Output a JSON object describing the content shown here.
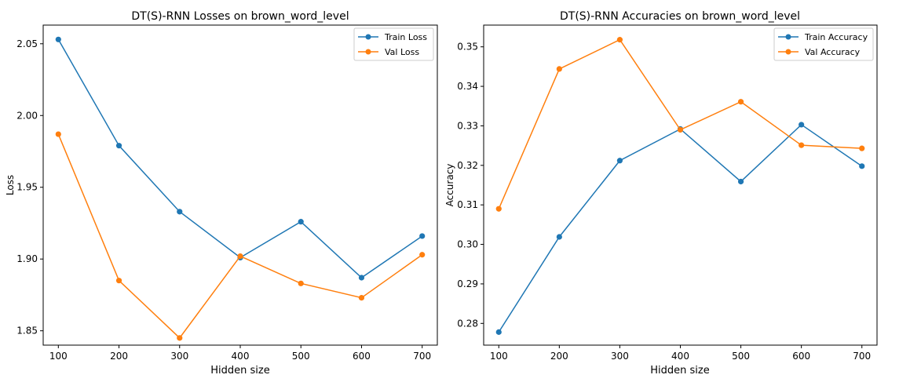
{
  "chart_data": [
    {
      "type": "line",
      "title": "DT(S)-RNN Losses on brown_word_level",
      "xlabel": "Hidden size",
      "ylabel": "Loss",
      "x": [
        100,
        200,
        300,
        400,
        500,
        600,
        700
      ],
      "xticks": [
        100,
        200,
        300,
        400,
        500,
        600,
        700
      ],
      "yticks": [
        "1.85",
        "1.90",
        "1.95",
        "2.00",
        "2.05"
      ],
      "xlim": [
        75,
        725
      ],
      "ylim": [
        1.84,
        2.063
      ],
      "legend_position": "top-right",
      "grid": false,
      "series": [
        {
          "name": "Train Loss",
          "color": "#1f77b4",
          "values": [
            2.053,
            1.979,
            1.933,
            1.901,
            1.926,
            1.887,
            1.916
          ]
        },
        {
          "name": "Val Loss",
          "color": "#ff7f0e",
          "values": [
            1.987,
            1.885,
            1.845,
            1.902,
            1.883,
            1.873,
            1.903
          ]
        }
      ]
    },
    {
      "type": "line",
      "title": "DT(S)-RNN Accuracies on brown_word_level",
      "xlabel": "Hidden size",
      "ylabel": "Accuracy",
      "x": [
        100,
        200,
        300,
        400,
        500,
        600,
        700
      ],
      "xticks": [
        100,
        200,
        300,
        400,
        500,
        600,
        700
      ],
      "yticks": [
        "0.28",
        "0.29",
        "0.30",
        "0.31",
        "0.32",
        "0.33",
        "0.34",
        "0.35"
      ],
      "xlim": [
        75,
        725
      ],
      "ylim": [
        0.2745,
        0.3555
      ],
      "legend_position": "top-right",
      "grid": false,
      "series": [
        {
          "name": "Train Accuracy",
          "color": "#1f77b4",
          "values": [
            0.2778,
            0.3019,
            0.3212,
            0.3292,
            0.3159,
            0.3303,
            0.3198
          ]
        },
        {
          "name": "Val Accuracy",
          "color": "#ff7f0e",
          "values": [
            0.309,
            0.3444,
            0.3518,
            0.329,
            0.3361,
            0.3251,
            0.3243
          ]
        }
      ]
    }
  ]
}
